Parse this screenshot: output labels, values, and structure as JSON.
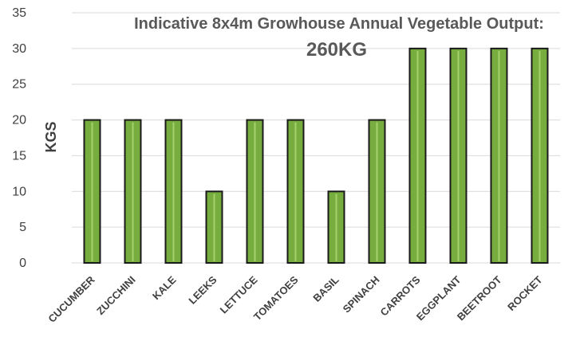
{
  "chart_data": {
    "type": "bar",
    "title": "Indicative 8x4m Growhouse Annual Vegetable Output:",
    "subtitle": "260KG",
    "xlabel": "",
    "ylabel": "KGS",
    "categories": [
      "CUCUMBER",
      "ZUCCHINI",
      "KALE",
      "LEEKS",
      "LETTUCE",
      "TOMATOES",
      "BASIL",
      "SPINACH",
      "CARROTS",
      "EGGPLANT",
      "BEETROOT",
      "ROCKET"
    ],
    "values": [
      20,
      20,
      20,
      10,
      20,
      20,
      10,
      20,
      30,
      30,
      30,
      30
    ],
    "ylim": [
      0,
      35
    ],
    "yticks": [
      "0",
      "5",
      "10",
      "15",
      "20",
      "25",
      "30",
      "35"
    ],
    "grid": true,
    "legend": "none",
    "colors": {
      "bar": "#77AC3F",
      "bar_highlight": "#A6D06C",
      "bar_outline": "#1A1A1A",
      "grid": "#D9D9D9"
    }
  }
}
